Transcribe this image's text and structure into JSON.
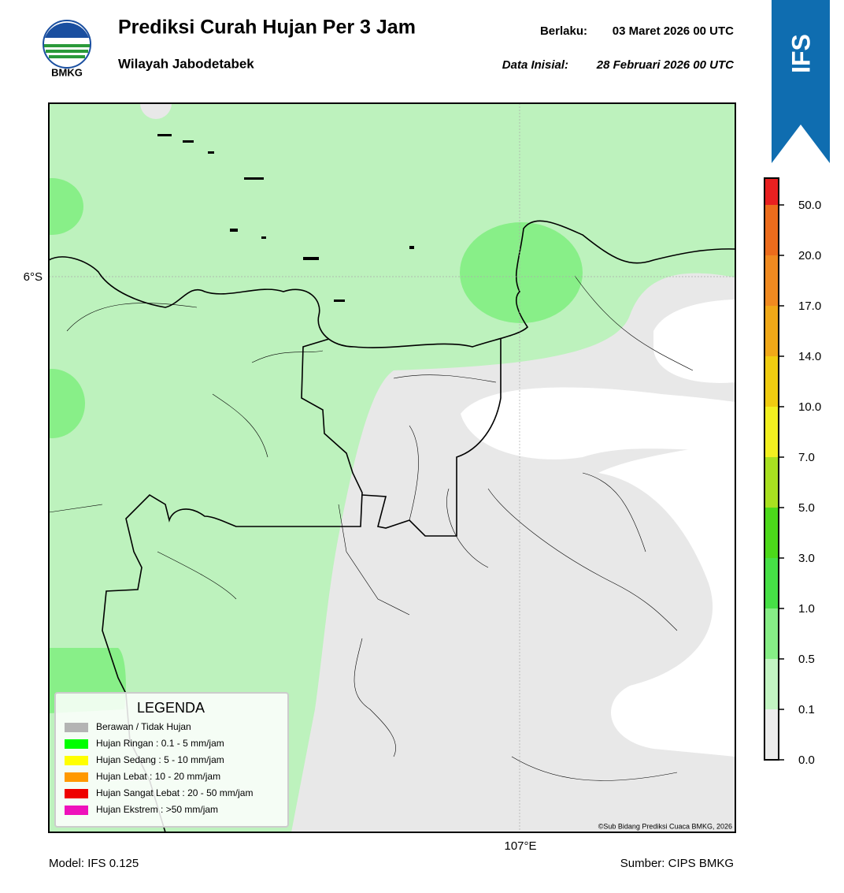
{
  "header": {
    "title": "Prediksi Curah Hujan Per 3 Jam",
    "subtitle": "Wilayah Jabodetabek",
    "logo_text": "BMKG",
    "valid_label": "Berlaku:",
    "valid_value": "03 Maret 2026 00 UTC",
    "init_label": "Data Inisial:",
    "init_value": "28 Februari 2026 00 UTC",
    "badge": "IFS"
  },
  "map": {
    "lat_label": "6°S",
    "lon_label": "107°E",
    "credit": "©Sub Bidang Prediksi Cuaca BMKG, 2026"
  },
  "legend": {
    "title": "LEGENDA",
    "items": [
      {
        "label": "Berawan / Tidak Hujan",
        "color": "#b4b4b4"
      },
      {
        "label": "Hujan Ringan : 0.1 - 5 mm/jam",
        "color": "#00ff00"
      },
      {
        "label": "Hujan Sedang : 5 - 10 mm/jam",
        "color": "#ffff00"
      },
      {
        "label": "Hujan Lebat : 10 - 20 mm/jam",
        "color": "#ff9900"
      },
      {
        "label": "Hujan Sangat Lebat : 20 - 50 mm/jam",
        "color": "#ee0000"
      },
      {
        "label": "Hujan Ekstrem : >50 mm/jam",
        "color": "#ee11bb"
      }
    ]
  },
  "colorbar": {
    "ticks": [
      {
        "value": 0,
        "label": "0.0"
      },
      0.1,
      0.5,
      {
        "value": 1,
        "label": "1.0"
      },
      {
        "value": 3,
        "label": "3.0"
      },
      {
        "value": 5,
        "label": "5.0"
      },
      {
        "value": 7,
        "label": "7.0"
      },
      {
        "value": 10,
        "label": "10.0"
      },
      {
        "value": 14,
        "label": "14.0"
      },
      {
        "value": 17,
        "label": "17.0"
      },
      {
        "value": 20,
        "label": "20.0"
      },
      {
        "value": 50,
        "label": "50.0"
      }
    ],
    "colors": [
      "#ececec",
      "#c2f4c2",
      "#86ee86",
      "#46e046",
      "#4cd91a",
      "#a8e020",
      "#f2f020",
      "#f0cc10",
      "#f0a818",
      "#f08a20",
      "#ec6c1c",
      "#e82020",
      "#e020c0"
    ]
  },
  "footer": {
    "model": "Model: IFS 0.125",
    "source": "Sumber: CIPS BMKG"
  }
}
